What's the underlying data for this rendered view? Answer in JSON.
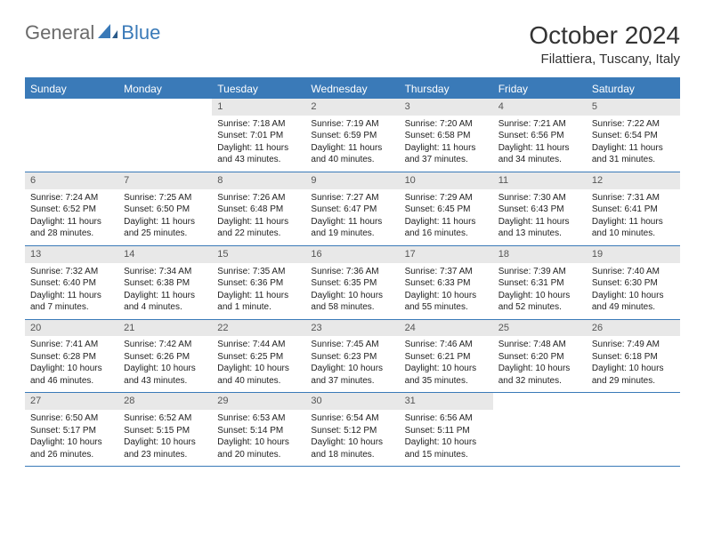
{
  "logo": {
    "general": "General",
    "blue": "Blue"
  },
  "title": "October 2024",
  "location": "Filattiera, Tuscany, Italy",
  "colors": {
    "accent": "#3a7ab8",
    "dayHeaderBg": "#e8e8e8"
  },
  "dayNames": [
    "Sunday",
    "Monday",
    "Tuesday",
    "Wednesday",
    "Thursday",
    "Friday",
    "Saturday"
  ],
  "weeks": [
    [
      {
        "n": "",
        "sr": "",
        "ss": "",
        "dl": ""
      },
      {
        "n": "",
        "sr": "",
        "ss": "",
        "dl": ""
      },
      {
        "n": "1",
        "sr": "Sunrise: 7:18 AM",
        "ss": "Sunset: 7:01 PM",
        "dl": "Daylight: 11 hours and 43 minutes."
      },
      {
        "n": "2",
        "sr": "Sunrise: 7:19 AM",
        "ss": "Sunset: 6:59 PM",
        "dl": "Daylight: 11 hours and 40 minutes."
      },
      {
        "n": "3",
        "sr": "Sunrise: 7:20 AM",
        "ss": "Sunset: 6:58 PM",
        "dl": "Daylight: 11 hours and 37 minutes."
      },
      {
        "n": "4",
        "sr": "Sunrise: 7:21 AM",
        "ss": "Sunset: 6:56 PM",
        "dl": "Daylight: 11 hours and 34 minutes."
      },
      {
        "n": "5",
        "sr": "Sunrise: 7:22 AM",
        "ss": "Sunset: 6:54 PM",
        "dl": "Daylight: 11 hours and 31 minutes."
      }
    ],
    [
      {
        "n": "6",
        "sr": "Sunrise: 7:24 AM",
        "ss": "Sunset: 6:52 PM",
        "dl": "Daylight: 11 hours and 28 minutes."
      },
      {
        "n": "7",
        "sr": "Sunrise: 7:25 AM",
        "ss": "Sunset: 6:50 PM",
        "dl": "Daylight: 11 hours and 25 minutes."
      },
      {
        "n": "8",
        "sr": "Sunrise: 7:26 AM",
        "ss": "Sunset: 6:48 PM",
        "dl": "Daylight: 11 hours and 22 minutes."
      },
      {
        "n": "9",
        "sr": "Sunrise: 7:27 AM",
        "ss": "Sunset: 6:47 PM",
        "dl": "Daylight: 11 hours and 19 minutes."
      },
      {
        "n": "10",
        "sr": "Sunrise: 7:29 AM",
        "ss": "Sunset: 6:45 PM",
        "dl": "Daylight: 11 hours and 16 minutes."
      },
      {
        "n": "11",
        "sr": "Sunrise: 7:30 AM",
        "ss": "Sunset: 6:43 PM",
        "dl": "Daylight: 11 hours and 13 minutes."
      },
      {
        "n": "12",
        "sr": "Sunrise: 7:31 AM",
        "ss": "Sunset: 6:41 PM",
        "dl": "Daylight: 11 hours and 10 minutes."
      }
    ],
    [
      {
        "n": "13",
        "sr": "Sunrise: 7:32 AM",
        "ss": "Sunset: 6:40 PM",
        "dl": "Daylight: 11 hours and 7 minutes."
      },
      {
        "n": "14",
        "sr": "Sunrise: 7:34 AM",
        "ss": "Sunset: 6:38 PM",
        "dl": "Daylight: 11 hours and 4 minutes."
      },
      {
        "n": "15",
        "sr": "Sunrise: 7:35 AM",
        "ss": "Sunset: 6:36 PM",
        "dl": "Daylight: 11 hours and 1 minute."
      },
      {
        "n": "16",
        "sr": "Sunrise: 7:36 AM",
        "ss": "Sunset: 6:35 PM",
        "dl": "Daylight: 10 hours and 58 minutes."
      },
      {
        "n": "17",
        "sr": "Sunrise: 7:37 AM",
        "ss": "Sunset: 6:33 PM",
        "dl": "Daylight: 10 hours and 55 minutes."
      },
      {
        "n": "18",
        "sr": "Sunrise: 7:39 AM",
        "ss": "Sunset: 6:31 PM",
        "dl": "Daylight: 10 hours and 52 minutes."
      },
      {
        "n": "19",
        "sr": "Sunrise: 7:40 AM",
        "ss": "Sunset: 6:30 PM",
        "dl": "Daylight: 10 hours and 49 minutes."
      }
    ],
    [
      {
        "n": "20",
        "sr": "Sunrise: 7:41 AM",
        "ss": "Sunset: 6:28 PM",
        "dl": "Daylight: 10 hours and 46 minutes."
      },
      {
        "n": "21",
        "sr": "Sunrise: 7:42 AM",
        "ss": "Sunset: 6:26 PM",
        "dl": "Daylight: 10 hours and 43 minutes."
      },
      {
        "n": "22",
        "sr": "Sunrise: 7:44 AM",
        "ss": "Sunset: 6:25 PM",
        "dl": "Daylight: 10 hours and 40 minutes."
      },
      {
        "n": "23",
        "sr": "Sunrise: 7:45 AM",
        "ss": "Sunset: 6:23 PM",
        "dl": "Daylight: 10 hours and 37 minutes."
      },
      {
        "n": "24",
        "sr": "Sunrise: 7:46 AM",
        "ss": "Sunset: 6:21 PM",
        "dl": "Daylight: 10 hours and 35 minutes."
      },
      {
        "n": "25",
        "sr": "Sunrise: 7:48 AM",
        "ss": "Sunset: 6:20 PM",
        "dl": "Daylight: 10 hours and 32 minutes."
      },
      {
        "n": "26",
        "sr": "Sunrise: 7:49 AM",
        "ss": "Sunset: 6:18 PM",
        "dl": "Daylight: 10 hours and 29 minutes."
      }
    ],
    [
      {
        "n": "27",
        "sr": "Sunrise: 6:50 AM",
        "ss": "Sunset: 5:17 PM",
        "dl": "Daylight: 10 hours and 26 minutes."
      },
      {
        "n": "28",
        "sr": "Sunrise: 6:52 AM",
        "ss": "Sunset: 5:15 PM",
        "dl": "Daylight: 10 hours and 23 minutes."
      },
      {
        "n": "29",
        "sr": "Sunrise: 6:53 AM",
        "ss": "Sunset: 5:14 PM",
        "dl": "Daylight: 10 hours and 20 minutes."
      },
      {
        "n": "30",
        "sr": "Sunrise: 6:54 AM",
        "ss": "Sunset: 5:12 PM",
        "dl": "Daylight: 10 hours and 18 minutes."
      },
      {
        "n": "31",
        "sr": "Sunrise: 6:56 AM",
        "ss": "Sunset: 5:11 PM",
        "dl": "Daylight: 10 hours and 15 minutes."
      },
      {
        "n": "",
        "sr": "",
        "ss": "",
        "dl": ""
      },
      {
        "n": "",
        "sr": "",
        "ss": "",
        "dl": ""
      }
    ]
  ]
}
